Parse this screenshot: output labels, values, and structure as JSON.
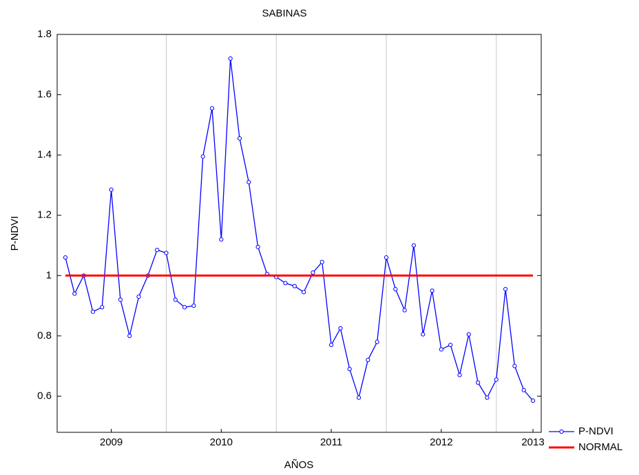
{
  "chart_data": {
    "type": "line",
    "title": "SABINAS",
    "x_label": "AÑOS",
    "y_label": "P-NDVI",
    "x": [
      0,
      1,
      2,
      3,
      4,
      5,
      6,
      7,
      8,
      9,
      10,
      11,
      12,
      13,
      14,
      15,
      16,
      17,
      18,
      19,
      20,
      21,
      22,
      23,
      24,
      25,
      26,
      27,
      28,
      29,
      30,
      31,
      32,
      33,
      34,
      35,
      36,
      37,
      38,
      39,
      40,
      41,
      42,
      43,
      44,
      45,
      46,
      47,
      48,
      49,
      50,
      51
    ],
    "series": [
      {
        "name": "P-NDVI",
        "color": "#0000ff",
        "marker": true,
        "values": [
          1.06,
          0.94,
          1.0,
          0.88,
          0.895,
          1.285,
          0.92,
          0.8,
          0.93,
          1.0,
          1.085,
          1.075,
          0.92,
          0.895,
          0.9,
          1.395,
          1.555,
          1.12,
          1.72,
          1.455,
          1.31,
          1.095,
          1.005,
          0.995,
          0.975,
          0.965,
          0.945,
          1.01,
          1.045,
          0.77,
          0.825,
          0.69,
          0.595,
          0.72,
          0.78,
          1.06,
          0.955,
          0.885,
          1.1,
          0.805,
          0.95,
          0.755,
          0.77,
          0.67,
          0.805,
          0.645,
          0.595,
          0.655,
          0.955,
          0.7,
          0.62,
          0.585
        ]
      },
      {
        "name": "NORMAL",
        "color": "#ff0000",
        "marker": false,
        "x": [
          0,
          51
        ],
        "values": [
          1.0,
          1.0
        ]
      }
    ],
    "xlim": [
      -0.9,
      51.9
    ],
    "xticks": [
      {
        "value": 5,
        "label": "2009"
      },
      {
        "value": 17,
        "label": "2010"
      },
      {
        "value": 29,
        "label": "2011"
      },
      {
        "value": 41,
        "label": "2012"
      },
      {
        "value": 51,
        "label": "2013"
      }
    ],
    "xgrid": [
      11,
      23,
      35,
      47
    ],
    "ylim": [
      0.48,
      1.8
    ],
    "yticks": [
      0.6,
      0.8,
      1.0,
      1.2,
      1.4,
      1.6,
      1.8
    ],
    "legend": "lower right outside"
  }
}
